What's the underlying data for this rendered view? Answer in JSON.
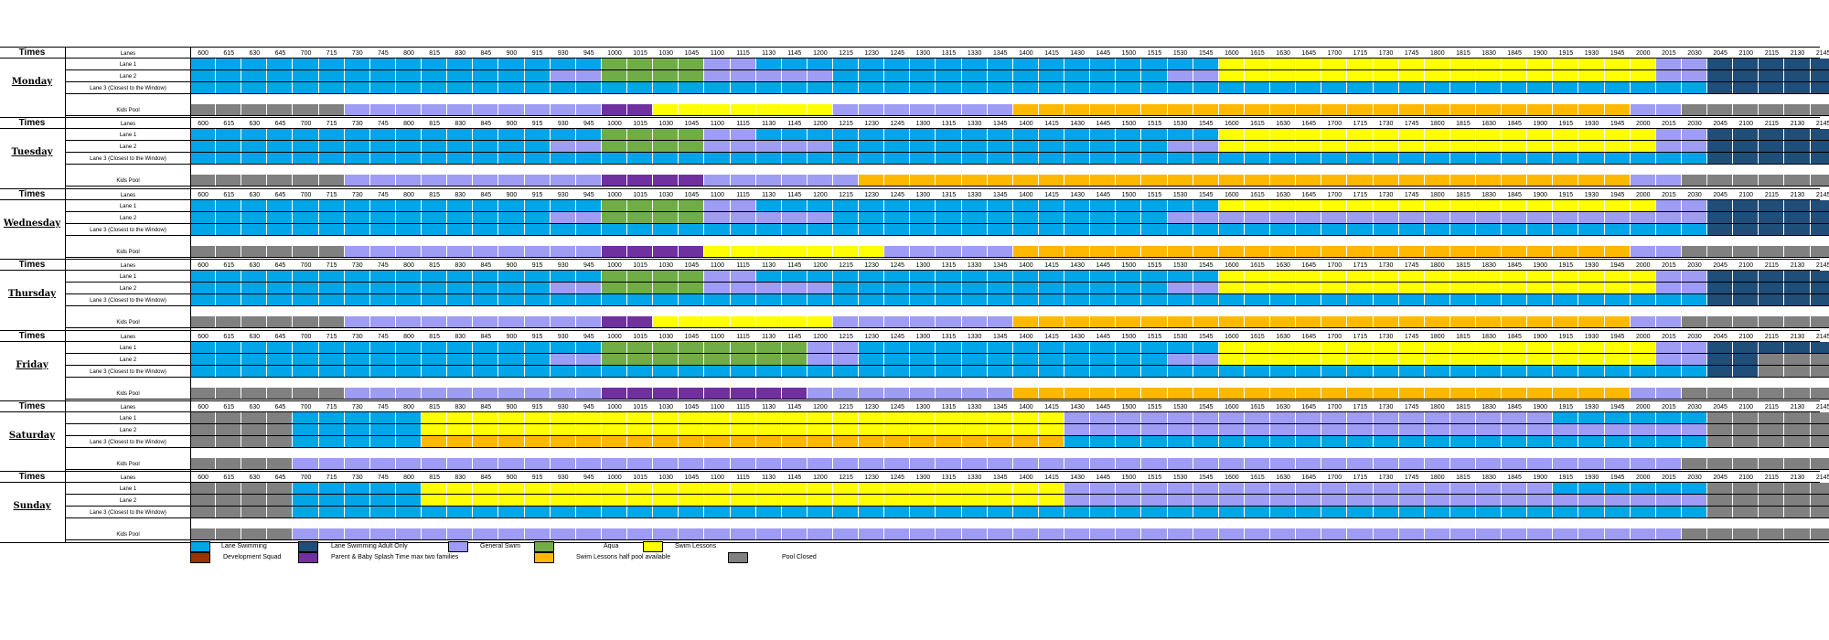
{
  "labels": {
    "times": "Times",
    "lanes": "Lanes",
    "lane1": "Lane 1",
    "lane2": "Lane 2",
    "lane3": "Lane 3 (Closest to the Window)",
    "kids_pool": "Kids Pool"
  },
  "times": [
    "600",
    "615",
    "630",
    "645",
    "700",
    "715",
    "730",
    "745",
    "800",
    "815",
    "830",
    "845",
    "900",
    "915",
    "930",
    "945",
    "1000",
    "1015",
    "1030",
    "1045",
    "1100",
    "1115",
    "1130",
    "1145",
    "1200",
    "1215",
    "1230",
    "1245",
    "1300",
    "1315",
    "1330",
    "1345",
    "1400",
    "1415",
    "1430",
    "1445",
    "1500",
    "1515",
    "1530",
    "1545",
    "1600",
    "1615",
    "1630",
    "1645",
    "1700",
    "1715",
    "1730",
    "1745",
    "1800",
    "1815",
    "1830",
    "1845",
    "1900",
    "1915",
    "1930",
    "1945",
    "2000",
    "2015",
    "2030",
    "2045",
    "2100",
    "2115",
    "2130",
    "2145"
  ],
  "colors": {
    "lane": "#00A6E8",
    "adult": "#1F4E79",
    "general": "#9E9CF3",
    "aqua": "#70AD47",
    "lessons": "#FFFF00",
    "dev": "#993300",
    "parent": "#7030A0",
    "half": "#FFB800",
    "closed": "#808080"
  },
  "legend": [
    {
      "key": "lane",
      "label": "Lane Swimming"
    },
    {
      "key": "adult",
      "label": "Lane Swimming Adult Only"
    },
    {
      "key": "general",
      "label": "General Swim"
    },
    {
      "key": "aqua",
      "label": "Aqua"
    },
    {
      "key": "lessons",
      "label": "Swim Lessons"
    },
    {
      "key": "dev",
      "label": "Development Squad"
    },
    {
      "key": "parent",
      "label": "Parent & Baby Splash Time max two families"
    },
    {
      "key": "half",
      "label": "Swim Lessons half pool available"
    },
    {
      "key": "closed",
      "label": "Pool Closed"
    }
  ],
  "days": [
    {
      "name": "Monday",
      "lane1": [
        [
          0,
          16,
          "lane"
        ],
        [
          16,
          20,
          "aqua"
        ],
        [
          20,
          22,
          "general"
        ],
        [
          22,
          40,
          "lane"
        ],
        [
          40,
          57,
          "lessons"
        ],
        [
          57,
          59,
          "general"
        ],
        [
          59,
          64,
          "adult"
        ]
      ],
      "lane2": [
        [
          0,
          14,
          "lane"
        ],
        [
          14,
          16,
          "general"
        ],
        [
          16,
          20,
          "aqua"
        ],
        [
          20,
          25,
          "general"
        ],
        [
          25,
          38,
          "lane"
        ],
        [
          38,
          40,
          "general"
        ],
        [
          40,
          57,
          "lessons"
        ],
        [
          57,
          59,
          "general"
        ],
        [
          59,
          64,
          "adult"
        ]
      ],
      "lane3": [
        [
          0,
          59,
          "lane"
        ],
        [
          59,
          64,
          "adult"
        ]
      ],
      "kids": [
        [
          0,
          6,
          "closed"
        ],
        [
          6,
          16,
          "general"
        ],
        [
          16,
          18,
          "parent"
        ],
        [
          18,
          25,
          "lessons"
        ],
        [
          25,
          32,
          "general"
        ],
        [
          32,
          56,
          "half"
        ],
        [
          56,
          58,
          "general"
        ],
        [
          58,
          64,
          "closed"
        ]
      ]
    },
    {
      "name": "Tuesday",
      "lane1": [
        [
          0,
          16,
          "lane"
        ],
        [
          16,
          20,
          "aqua"
        ],
        [
          20,
          22,
          "general"
        ],
        [
          22,
          40,
          "lane"
        ],
        [
          40,
          57,
          "lessons"
        ],
        [
          57,
          59,
          "general"
        ],
        [
          59,
          64,
          "adult"
        ]
      ],
      "lane2": [
        [
          0,
          14,
          "lane"
        ],
        [
          14,
          16,
          "general"
        ],
        [
          16,
          20,
          "aqua"
        ],
        [
          20,
          25,
          "general"
        ],
        [
          25,
          38,
          "lane"
        ],
        [
          38,
          40,
          "general"
        ],
        [
          40,
          57,
          "lessons"
        ],
        [
          57,
          59,
          "general"
        ],
        [
          59,
          64,
          "adult"
        ]
      ],
      "lane3": [
        [
          0,
          59,
          "lane"
        ],
        [
          59,
          64,
          "adult"
        ]
      ],
      "kids": [
        [
          0,
          6,
          "closed"
        ],
        [
          6,
          16,
          "general"
        ],
        [
          16,
          20,
          "parent"
        ],
        [
          20,
          26,
          "general"
        ],
        [
          26,
          56,
          "half"
        ],
        [
          56,
          58,
          "general"
        ],
        [
          58,
          64,
          "closed"
        ]
      ]
    },
    {
      "name": "Wednesday",
      "lane1": [
        [
          0,
          16,
          "lane"
        ],
        [
          16,
          20,
          "aqua"
        ],
        [
          20,
          22,
          "general"
        ],
        [
          22,
          40,
          "lane"
        ],
        [
          40,
          57,
          "lessons"
        ],
        [
          57,
          59,
          "general"
        ],
        [
          59,
          64,
          "adult"
        ]
      ],
      "lane2": [
        [
          0,
          14,
          "lane"
        ],
        [
          14,
          16,
          "general"
        ],
        [
          16,
          20,
          "aqua"
        ],
        [
          20,
          25,
          "general"
        ],
        [
          25,
          38,
          "lane"
        ],
        [
          38,
          59,
          "general"
        ],
        [
          59,
          64,
          "adult"
        ]
      ],
      "lane3": [
        [
          0,
          59,
          "lane"
        ],
        [
          59,
          64,
          "adult"
        ]
      ],
      "kids": [
        [
          0,
          6,
          "closed"
        ],
        [
          6,
          16,
          "general"
        ],
        [
          16,
          20,
          "parent"
        ],
        [
          20,
          27,
          "lessons"
        ],
        [
          27,
          32,
          "general"
        ],
        [
          32,
          56,
          "half"
        ],
        [
          56,
          58,
          "general"
        ],
        [
          58,
          64,
          "closed"
        ]
      ]
    },
    {
      "name": "Thursday",
      "lane1": [
        [
          0,
          16,
          "lane"
        ],
        [
          16,
          20,
          "aqua"
        ],
        [
          20,
          22,
          "general"
        ],
        [
          22,
          40,
          "lane"
        ],
        [
          40,
          57,
          "lessons"
        ],
        [
          57,
          59,
          "general"
        ],
        [
          59,
          64,
          "adult"
        ]
      ],
      "lane2": [
        [
          0,
          14,
          "lane"
        ],
        [
          14,
          16,
          "general"
        ],
        [
          16,
          20,
          "aqua"
        ],
        [
          20,
          25,
          "general"
        ],
        [
          25,
          38,
          "lane"
        ],
        [
          38,
          40,
          "general"
        ],
        [
          40,
          57,
          "lessons"
        ],
        [
          57,
          59,
          "general"
        ],
        [
          59,
          64,
          "adult"
        ]
      ],
      "lane3": [
        [
          0,
          59,
          "lane"
        ],
        [
          59,
          64,
          "adult"
        ]
      ],
      "kids": [
        [
          0,
          6,
          "closed"
        ],
        [
          6,
          16,
          "general"
        ],
        [
          16,
          18,
          "parent"
        ],
        [
          18,
          25,
          "lessons"
        ],
        [
          25,
          32,
          "general"
        ],
        [
          32,
          56,
          "half"
        ],
        [
          56,
          58,
          "general"
        ],
        [
          58,
          64,
          "closed"
        ]
      ]
    },
    {
      "name": "Friday",
      "lane1": [
        [
          0,
          16,
          "lane"
        ],
        [
          16,
          24,
          "aqua"
        ],
        [
          24,
          26,
          "general"
        ],
        [
          26,
          40,
          "lane"
        ],
        [
          40,
          57,
          "lessons"
        ],
        [
          57,
          59,
          "general"
        ],
        [
          59,
          64,
          "adult"
        ]
      ],
      "lane2": [
        [
          0,
          14,
          "lane"
        ],
        [
          14,
          16,
          "general"
        ],
        [
          16,
          24,
          "aqua"
        ],
        [
          24,
          26,
          "general"
        ],
        [
          26,
          38,
          "lane"
        ],
        [
          38,
          40,
          "general"
        ],
        [
          40,
          57,
          "lessons"
        ],
        [
          57,
          59,
          "general"
        ],
        [
          59,
          61,
          "adult"
        ],
        [
          61,
          64,
          "closed"
        ]
      ],
      "lane3": [
        [
          0,
          59,
          "lane"
        ],
        [
          59,
          61,
          "adult"
        ],
        [
          61,
          64,
          "closed"
        ]
      ],
      "kids": [
        [
          0,
          6,
          "closed"
        ],
        [
          6,
          16,
          "general"
        ],
        [
          16,
          24,
          "parent"
        ],
        [
          24,
          32,
          "general"
        ],
        [
          32,
          56,
          "half"
        ],
        [
          56,
          58,
          "general"
        ],
        [
          58,
          64,
          "closed"
        ]
      ]
    },
    {
      "name": "Saturday",
      "lane1": [
        [
          0,
          4,
          "closed"
        ],
        [
          4,
          9,
          "lane"
        ],
        [
          9,
          34,
          "lessons"
        ],
        [
          34,
          53,
          "general"
        ],
        [
          53,
          59,
          "lane"
        ],
        [
          59,
          64,
          "closed"
        ]
      ],
      "lane2": [
        [
          0,
          4,
          "closed"
        ],
        [
          4,
          9,
          "lane"
        ],
        [
          9,
          34,
          "lessons"
        ],
        [
          34,
          59,
          "general"
        ],
        [
          59,
          64,
          "closed"
        ]
      ],
      "lane3": [
        [
          0,
          4,
          "closed"
        ],
        [
          4,
          9,
          "lane"
        ],
        [
          9,
          34,
          "half"
        ],
        [
          34,
          59,
          "lane"
        ],
        [
          59,
          64,
          "closed"
        ]
      ],
      "kids": [
        [
          0,
          4,
          "closed"
        ],
        [
          4,
          58,
          "general"
        ],
        [
          58,
          64,
          "closed"
        ]
      ]
    },
    {
      "name": "Sunday",
      "lane1": [
        [
          0,
          4,
          "closed"
        ],
        [
          4,
          9,
          "lane"
        ],
        [
          9,
          34,
          "lessons"
        ],
        [
          34,
          53,
          "general"
        ],
        [
          53,
          59,
          "lane"
        ],
        [
          59,
          64,
          "closed"
        ]
      ],
      "lane2": [
        [
          0,
          4,
          "closed"
        ],
        [
          4,
          9,
          "lane"
        ],
        [
          9,
          34,
          "lessons"
        ],
        [
          34,
          59,
          "general"
        ],
        [
          59,
          64,
          "closed"
        ]
      ],
      "lane3": [
        [
          0,
          4,
          "closed"
        ],
        [
          4,
          59,
          "lane"
        ],
        [
          59,
          64,
          "closed"
        ]
      ],
      "kids": [
        [
          0,
          4,
          "closed"
        ],
        [
          4,
          58,
          "general"
        ],
        [
          58,
          64,
          "closed"
        ]
      ]
    }
  ]
}
